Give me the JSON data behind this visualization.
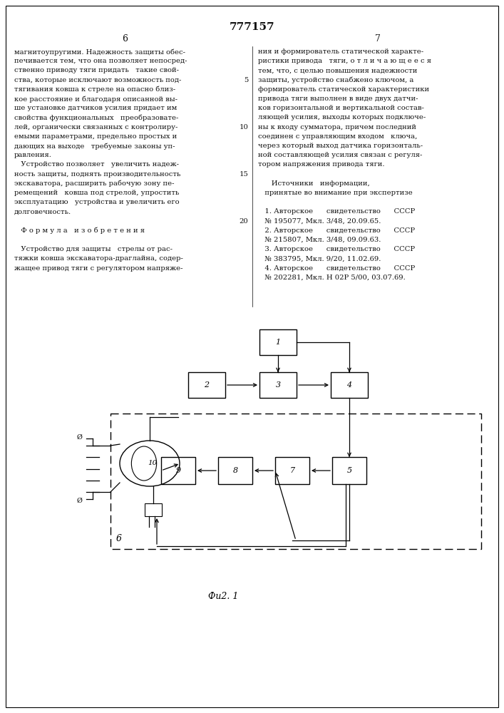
{
  "title": "777157",
  "page_left": "6",
  "page_right": "7",
  "background_color": "#ffffff",
  "text_color": "#111111",
  "fig_caption": "Фu2. 1",
  "left_col": [
    "магнитоупругими. Надежность защиты обес-",
    "печивается тем, что она позволяет непосред-",
    "ственно приводу тяги придать   такие свой-",
    "ства, которые исключают возможность под-",
    "тягивания ковша к стреле на опасно близ-",
    "кое расстояние и благодаря описанной вы-",
    "ше установке датчиков усилия придает им",
    "свойства функциональных   преобразовате-",
    "лей, органически связанных с контролиру-",
    "емыми параметрами, предельно простых и",
    "дающих на выходе   требуемые законы уп-",
    "равления.",
    "   Устройство позволяет   увеличить надеж-",
    "ность защиты, поднять производительность",
    "экскаватора, расширить рабочую зону пе-",
    "ремещений   ковша под стрелой, упростить",
    "эксплуатацию   устройства и увеличить его",
    "долговечность.",
    "",
    "   Ф о р м у л а   и з о б р е т е н и я",
    "",
    "   Устройство для защиты   стрелы от рас-",
    "тяжки ковша экскаватора-драглайна, содер-",
    "жащее привод тяги с регулятором напряже-"
  ],
  "right_col": [
    "ния и формирователь статической характе-",
    "ристики привода   тяги, о т л и ч а ю щ е е с я",
    "тем, что, с целью повышения надежности",
    "защиты, устройство снабжено ключом, а",
    "формирователь статической характеристики",
    "привода тяги выполнен в виде двух датчи-",
    "ков горизонтальной и вертикальной состав-",
    "ляющей усилия, выходы которых подключе-",
    "ны к входу сумматора, причем последний",
    "соединен с управляющим входом   ключа,",
    "через который выход датчика горизонталь-",
    "ной составляющей усилия связан с регуля-",
    "тором напряжения привода тяги.",
    "",
    "      Источники   информации,",
    "   принятые во внимание при экспертизе",
    "",
    "   1. Авторское      свидетельство      СССР",
    "   № 195077, Мкл. 3/48, 20.09.65.",
    "   2. Авторское      свидетельство      СССР",
    "   № 215807, Мкл. 3/48, 09.09.63.",
    "   3. Авторское      свидетельство      СССР",
    "   № 383795, Мкл. 9/20, 11.02.69.",
    "   4. Авторское      свидетельство      СССР",
    "   № 202281, Мкл. Н 02Р 5/00, 03.07.69."
  ]
}
